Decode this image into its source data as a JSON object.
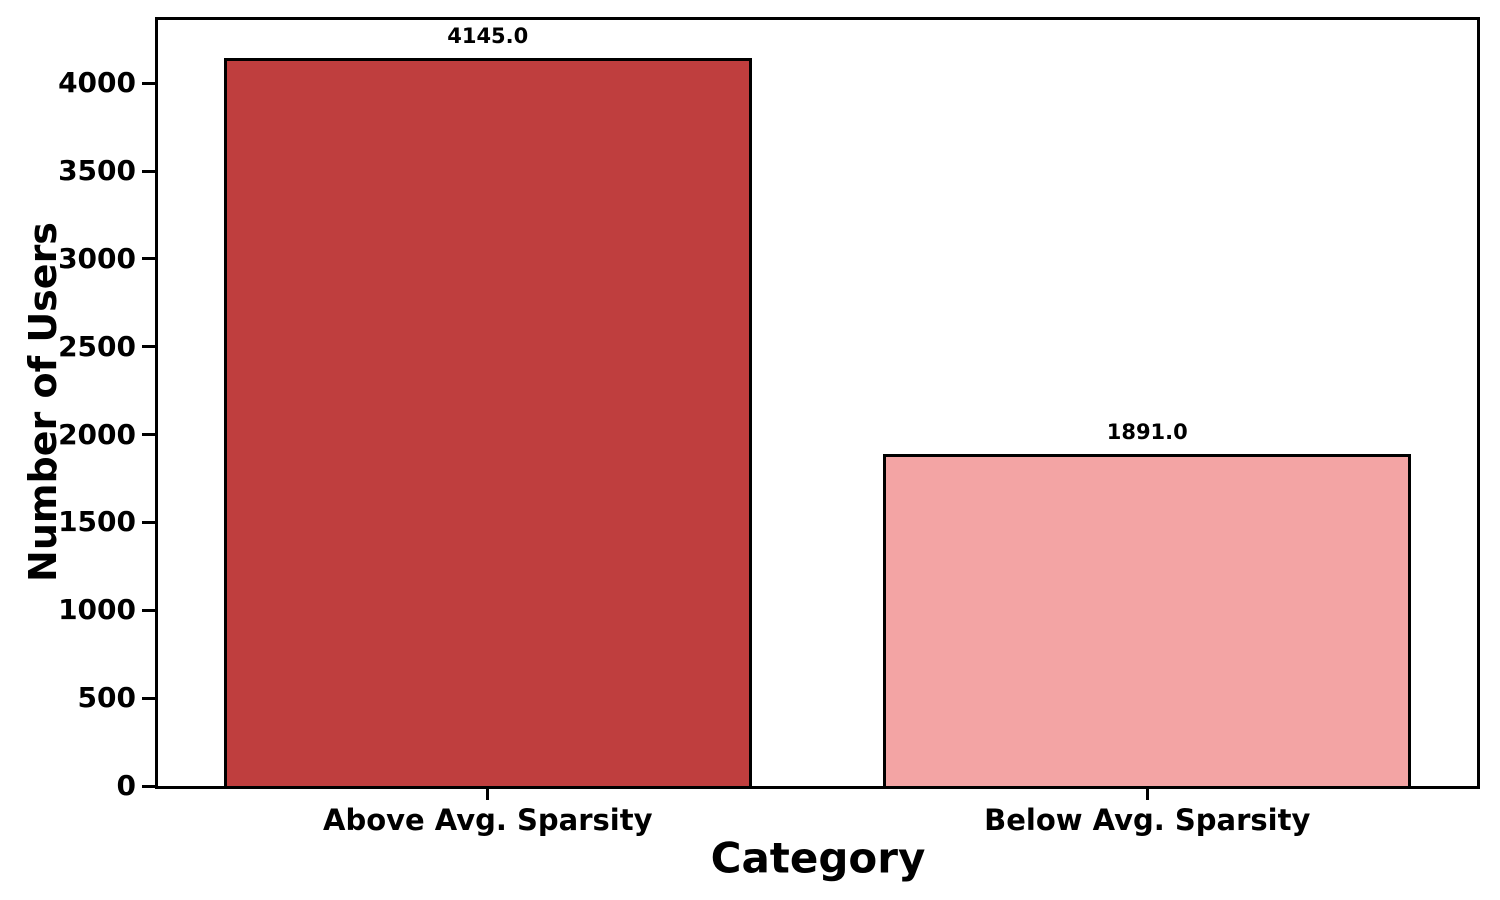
{
  "chart_data": {
    "type": "bar",
    "categories": [
      "Above Avg. Sparsity",
      "Below Avg. Sparsity"
    ],
    "values": [
      4145.0,
      1891.0
    ],
    "value_labels": [
      "4145.0",
      "1891.0"
    ],
    "xlabel": "Category",
    "ylabel": "Number of Users",
    "yticks": [
      0,
      500,
      1000,
      1500,
      2000,
      2500,
      3000,
      3500,
      4000
    ],
    "ylim": [
      0,
      4360
    ],
    "grid": false,
    "bar_colors": [
      "#bf3e3e",
      "#f3a4a4"
    ],
    "bar_edge_color": "#000000",
    "background_color": "#ffffff",
    "text_color": "#000000"
  }
}
